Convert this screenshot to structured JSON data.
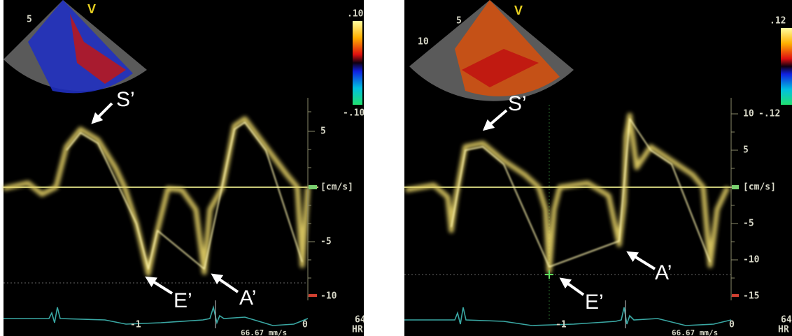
{
  "panels": [
    {
      "sector": {
        "marker": "V",
        "depth_labels": [
          "5"
        ]
      },
      "color_scale": {
        "top": ".10",
        "bottom": "-.10"
      },
      "velocity_axis": {
        "unit": "[cm/s]",
        "ticks": [
          "5",
          "-5",
          "-10"
        ]
      },
      "annotations": [
        "S’",
        "E’",
        "A’"
      ],
      "ecg": {
        "time_labels": [
          "-1",
          "0"
        ],
        "sweep_speed": "66.67 mm/s",
        "heart_rate_value": "64",
        "heart_rate_unit": "HR"
      }
    },
    {
      "sector": {
        "marker": "V",
        "depth_labels": [
          "5",
          "10"
        ]
      },
      "color_scale": {
        "top": ".12",
        "bottom": "-.12"
      },
      "velocity_axis": {
        "unit": "[cm/s]",
        "ticks": [
          "10",
          "5",
          "-5",
          "-10",
          "-15"
        ]
      },
      "annotations": [
        "S’",
        "E’",
        "A’"
      ],
      "ecg": {
        "time_labels": [
          "-1",
          "0"
        ],
        "sweep_speed": "66.67 mm/s",
        "heart_rate_value": "64",
        "heart_rate_unit": "HR"
      }
    }
  ]
}
